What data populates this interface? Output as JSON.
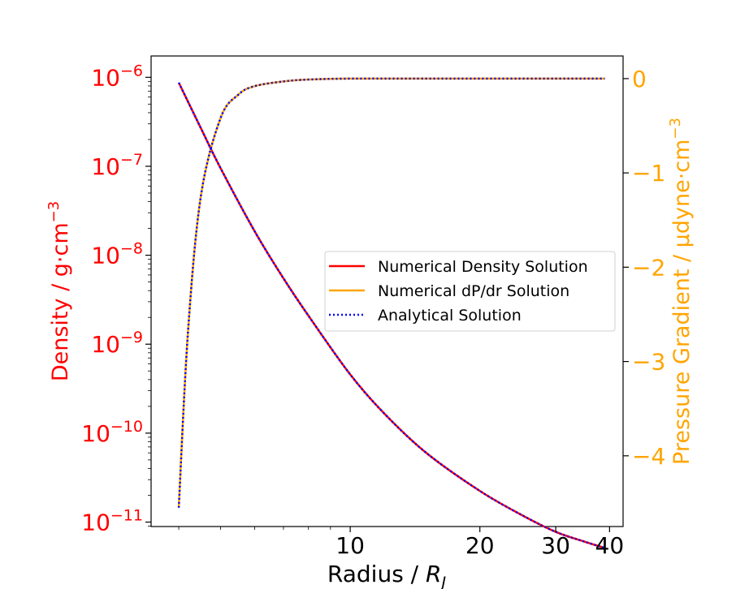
{
  "chart_data": {
    "type": "line",
    "title": "",
    "xlabel": "Radius / ",
    "xlabel_symbol": "R",
    "xlabel_subscript": "J",
    "xscale": "log",
    "xlim": [
      3.45,
      43
    ],
    "xticks": [
      {
        "value": 10,
        "label": "10"
      },
      {
        "value": 20,
        "label": "20"
      },
      {
        "value": 30,
        "label": "30"
      },
      {
        "value": 40,
        "label": "40"
      }
    ],
    "y_left": {
      "label": "Density / g·cm",
      "label_sup": "−3",
      "scale": "log",
      "ylim_log10": [
        -11.05,
        -5.76
      ],
      "ticks": [
        {
          "exp": -6,
          "base": "10",
          "sup": "−6"
        },
        {
          "exp": -7,
          "base": "10",
          "sup": "−7"
        },
        {
          "exp": -8,
          "base": "10",
          "sup": "−8"
        },
        {
          "exp": -9,
          "base": "10",
          "sup": "−9"
        },
        {
          "exp": -10,
          "base": "10",
          "sup": "−10"
        },
        {
          "exp": -11,
          "base": "10",
          "sup": "−11"
        }
      ],
      "color": "#ff0000"
    },
    "y_right": {
      "label": "Pressure Gradient / μdyne·cm",
      "label_sup": "−3",
      "scale": "linear",
      "ylim": [
        -4.75,
        0.24
      ],
      "ticks": [
        {
          "value": 0,
          "label": "0"
        },
        {
          "value": -1,
          "label": "−1"
        },
        {
          "value": -2,
          "label": "−2"
        },
        {
          "value": -3,
          "label": "−3"
        },
        {
          "value": -4,
          "label": "−4"
        }
      ],
      "color": "#ffa500"
    },
    "series": [
      {
        "name": "Numerical Density Solution",
        "axis": "left",
        "color": "#ff0000",
        "style": "solid",
        "x": [
          4,
          4.5,
          5,
          6,
          7,
          8,
          10,
          12,
          15,
          20,
          25,
          30,
          35,
          39
        ],
        "log10_y": [
          -6.06,
          -6.57,
          -7.02,
          -7.73,
          -8.26,
          -8.68,
          -9.34,
          -9.78,
          -10.22,
          -10.65,
          -10.92,
          -11.11,
          -11.22,
          -11.29
        ]
      },
      {
        "name": "Numerical dP/dr Solution",
        "axis": "right",
        "color": "#ffa500",
        "style": "solid",
        "x": [
          4,
          4.2,
          4.5,
          5,
          5.5,
          6,
          7,
          8,
          10,
          15,
          20,
          30,
          39
        ],
        "y": [
          -4.55,
          -2.7,
          -1.25,
          -0.42,
          -0.17,
          -0.08,
          -0.03,
          -0.01,
          0,
          0,
          0,
          0,
          0
        ]
      },
      {
        "name": "Analytical Solution",
        "axis": "both",
        "color": "#0000ff",
        "style": "dotted"
      }
    ],
    "legend_placement": "center-right",
    "grid": false
  }
}
